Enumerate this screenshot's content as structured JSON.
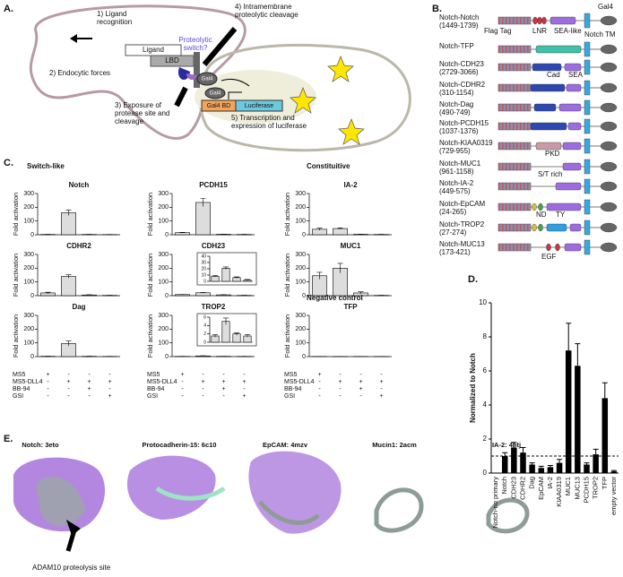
{
  "panel_labels": [
    "A.",
    "B.",
    "C.",
    "D.",
    "E."
  ],
  "diagram": {
    "steps": [
      [
        "1) Ligand",
        "recognition"
      ],
      [
        "2) Endocytic forces"
      ],
      [
        "3) Exposure of",
        "protease site and",
        "cleavage"
      ],
      [
        "4) Intramembrane",
        "proteolytic cleavage"
      ],
      [
        "5) Transcription and",
        "expression of luciferase"
      ]
    ],
    "ligand": "Ligand",
    "lbd": "LBD",
    "switch": [
      "Proteolytic",
      "switch?"
    ],
    "gal4": "Gal4",
    "gal4bd": "Gal4 BD",
    "luciferase": "Luciferase"
  },
  "constructs": {
    "rows": [
      {
        "name": "Notch-Notch",
        "range": "(1449-1739)"
      },
      {
        "name": "Notch-TFP"
      },
      {
        "name": "Notch-CDH23",
        "range": "(2729-3066)"
      },
      {
        "name": "Notch-CDHR2",
        "range": "(310-1154)"
      },
      {
        "name": "Notch-Dag",
        "range": "(490-749)"
      },
      {
        "name": "Notch-PCDH15",
        "range": "(1037-1376)"
      },
      {
        "name": "Notch-KIAA0319",
        "range": "(729-955)"
      },
      {
        "name": "Notch-MUC1",
        "range": "(961-1158)"
      },
      {
        "name": "Notch-IA-2",
        "range": "(449-575)"
      },
      {
        "name": "Notch-EpCAM",
        "range": "(24-265)"
      },
      {
        "name": "Notch-TROP2",
        "range": "(27-274)"
      },
      {
        "name": "Notch-MUC13",
        "range": "(173-421)"
      }
    ],
    "domain_labels": [
      "Gal4",
      "Flag Tag",
      "LNR",
      "SEA-like",
      "Notch TM",
      "Cad",
      "SEA",
      "PKD",
      "S/T rich",
      "ND",
      "TY",
      "EGF"
    ]
  },
  "fold_activation": {
    "y_label": "Fold activation",
    "group_titles": [
      "Switch-like",
      "Constituitive",
      "Negative control"
    ],
    "conditions": {
      "names": [
        "MS5",
        "MS5-DLL4",
        "BB-94",
        "GSI"
      ],
      "signs": [
        [
          "+",
          "-",
          "-",
          "-"
        ],
        [
          "-",
          "+",
          "+",
          "+"
        ],
        [
          "-",
          "-",
          "+",
          "-"
        ],
        [
          "-",
          "-",
          "-",
          "+"
        ]
      ]
    },
    "charts": [
      {
        "type": "bar",
        "title": "Notch",
        "values": [
          2,
          160,
          2,
          1
        ],
        "errors": [
          1,
          20,
          1,
          1
        ],
        "ylim": [
          0,
          300
        ],
        "yticks": [
          0,
          100,
          200,
          300
        ]
      },
      {
        "type": "bar",
        "title": "CDHR2",
        "values": [
          20,
          140,
          5,
          2
        ],
        "errors": [
          5,
          12,
          2,
          1
        ],
        "ylim": [
          0,
          300
        ],
        "yticks": [
          0,
          100,
          200,
          300
        ]
      },
      {
        "type": "bar",
        "title": "Dag",
        "values": [
          2,
          95,
          2,
          1
        ],
        "errors": [
          1,
          18,
          1,
          1
        ],
        "ylim": [
          0,
          300
        ],
        "yticks": [
          0,
          100,
          200,
          300
        ]
      },
      {
        "type": "bar",
        "title": "PCDH15",
        "values": [
          15,
          235,
          3,
          2
        ],
        "errors": [
          3,
          30,
          1,
          1
        ],
        "ylim": [
          0,
          300
        ],
        "yticks": [
          0,
          100,
          200,
          300
        ]
      },
      {
        "type": "bar",
        "title": "CDH23",
        "values": [
          8,
          21,
          6,
          2
        ],
        "errors": [
          1,
          2,
          1,
          1
        ],
        "ylim": [
          0,
          300
        ],
        "yticks": [
          0,
          100,
          200,
          300
        ],
        "inset": {
          "ylim": [
            0,
            40
          ],
          "yticks": [
            0,
            10,
            20,
            30,
            40
          ]
        }
      },
      {
        "type": "bar",
        "title": "TROP2",
        "values": [
          1.5,
          5,
          2,
          1.5
        ],
        "errors": [
          0.3,
          0.8,
          0.3,
          0.3
        ],
        "ylim": [
          0,
          300
        ],
        "yticks": [
          0,
          100,
          200,
          300
        ],
        "inset": {
          "ylim": [
            0,
            6
          ],
          "yticks": [
            0,
            2,
            4,
            6
          ]
        }
      },
      {
        "type": "bar",
        "title": "IA-2",
        "values": [
          40,
          45,
          3,
          2
        ],
        "errors": [
          8,
          5,
          1,
          1
        ],
        "ylim": [
          0,
          300
        ],
        "yticks": [
          0,
          100,
          200,
          300
        ]
      },
      {
        "type": "bar",
        "title": "MUC1",
        "values": [
          145,
          200,
          20,
          2
        ],
        "errors": [
          25,
          35,
          8,
          1
        ],
        "ylim": [
          0,
          300
        ],
        "yticks": [
          0,
          100,
          200,
          300
        ]
      },
      {
        "type": "bar",
        "title": "TFP",
        "values": [
          1,
          1,
          1,
          1
        ],
        "errors": [
          0.5,
          0.5,
          0.5,
          0.5
        ],
        "ylim": [
          0,
          300
        ],
        "yticks": [
          0,
          100,
          200,
          300
        ]
      }
    ]
  },
  "chart_data": {
    "type": "bar",
    "y_label": "Normalized to Notch",
    "categories": [
      "Notch-no primary",
      "Notch",
      "CDH23",
      "CDHR2",
      "Dag",
      "EpCAM",
      "IA-2",
      "KIAA0319",
      "MUC1",
      "MUC13",
      "PCDH15",
      "TROP2",
      "TFP",
      "empty vector"
    ],
    "values": [
      0,
      1,
      1.5,
      1.2,
      0.5,
      0.3,
      0.35,
      0.6,
      7.2,
      6.3,
      0.5,
      1.1,
      4.4,
      0.1
    ],
    "errors": [
      0,
      0.2,
      0.3,
      0.3,
      0.1,
      0.1,
      0.1,
      0.2,
      1.6,
      1.3,
      0.1,
      0.3,
      0.9,
      0.05
    ],
    "color": "#000000",
    "ylim": [
      0,
      10
    ],
    "yticks": [
      0,
      2,
      4,
      6,
      8,
      10
    ],
    "reference_line": 1
  },
  "structures": {
    "titles": [
      "Notch: 3eto",
      "Protocadherin-15: 6c10",
      "EpCAM: 4mzv",
      "Mucin1: 2acm",
      "IA-2: 4htj"
    ],
    "annotation": "ADAM10 proteolysis site"
  }
}
